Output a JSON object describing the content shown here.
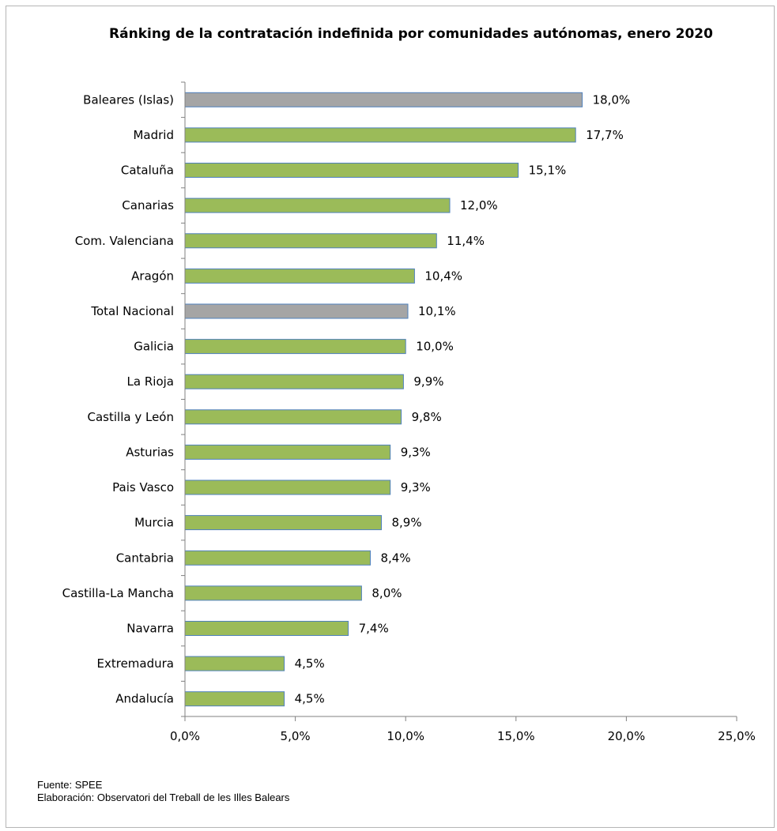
{
  "colors": {
    "bar_default": "#9bbb59",
    "bar_highlight": "#a5a5a5",
    "bar_border": "#4f81bd",
    "axis": "#808080"
  },
  "chart_data": {
    "type": "bar",
    "orientation": "horizontal",
    "title": "Ránking de la contratación indefinida por comunidades autónomas, enero 2020",
    "categories": [
      "Baleares (Islas)",
      "Madrid",
      "Cataluña",
      "Canarias",
      "Com. Valenciana",
      "Aragón",
      "Total Nacional",
      "Galicia",
      "La Rioja",
      "Castilla y León",
      "Asturias",
      "Pais Vasco",
      "Murcia",
      "Cantabria",
      "Castilla-La Mancha",
      "Navarra",
      "Extremadura",
      "Andalucía"
    ],
    "values": [
      18.0,
      17.7,
      15.1,
      12.0,
      11.4,
      10.4,
      10.1,
      10.0,
      9.9,
      9.8,
      9.3,
      9.3,
      8.9,
      8.4,
      8.0,
      7.4,
      4.5,
      4.5
    ],
    "data_labels": [
      "18,0%",
      "17,7%",
      "15,1%",
      "12,0%",
      "11,4%",
      "10,4%",
      "10,1%",
      "10,0%",
      "9,9%",
      "9,8%",
      "9,3%",
      "9,3%",
      "8,9%",
      "8,4%",
      "8,0%",
      "7,4%",
      "4,5%",
      "4,5%"
    ],
    "highlighted_categories": [
      "Baleares (Islas)",
      "Total Nacional"
    ],
    "xlim": [
      0,
      25
    ],
    "x_ticks": [
      0,
      5,
      10,
      15,
      20,
      25
    ],
    "x_tick_labels": [
      "0,0%",
      "5,0%",
      "10,0%",
      "15,0%",
      "20,0%",
      "25,0%"
    ],
    "xlabel": "",
    "ylabel": "",
    "grid": false,
    "legend": "none"
  },
  "footer": {
    "source": "Fuente: SPEE",
    "elaboration": "Elaboración: Observatori del Treball de les Illes Balears"
  }
}
